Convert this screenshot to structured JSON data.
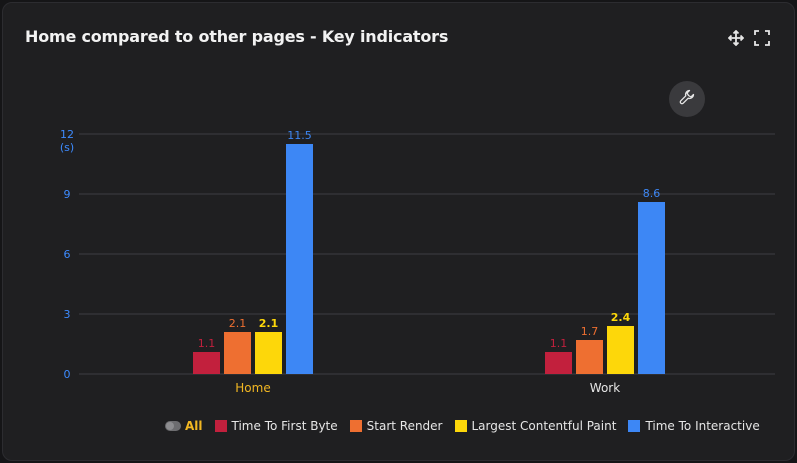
{
  "card": {
    "title": "Home compared to other pages - Key indicators",
    "move_icon": "move-icon",
    "fullscreen_icon": "fullscreen-icon",
    "settings_icon": "wrench-icon"
  },
  "legend": {
    "all_label": "All"
  },
  "colors": {
    "background": "#1f1f21",
    "grid": "#3d3d42",
    "axis_labels": "#3d8bff",
    "home_label": "#f2b722",
    "work_label": "#e6e6e6"
  },
  "chart_data": {
    "type": "bar",
    "title": "Home compared to other pages - Key indicators",
    "ylabel": "(s)",
    "categories": [
      "Home",
      "Work"
    ],
    "ylim": [
      0,
      12
    ],
    "yticks": [
      0,
      3,
      6,
      9,
      12
    ],
    "grid": true,
    "legend_position": "bottom",
    "series": [
      {
        "name": "Time To First Byte",
        "color": "#c2203d",
        "values": [
          1.1,
          1.1
        ]
      },
      {
        "name": "Start Render",
        "color": "#ee6f31",
        "values": [
          2.1,
          1.7
        ]
      },
      {
        "name": "Largest Contentful Paint",
        "color": "#fdd70a",
        "values": [
          2.1,
          2.4
        ]
      },
      {
        "name": "Time To Interactive",
        "color": "#3d87f5",
        "values": [
          11.5,
          8.6
        ]
      }
    ]
  }
}
